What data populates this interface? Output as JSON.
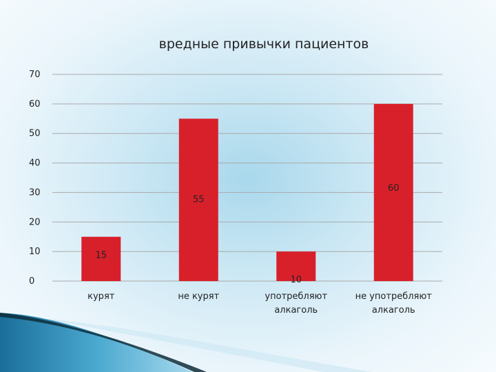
{
  "chart_data": {
    "type": "bar",
    "title": "вредные привычки пациентов",
    "categories": [
      [
        "курят"
      ],
      [
        "не курят"
      ],
      [
        "употребляют",
        "алкаголь"
      ],
      [
        "не употребляют",
        "алкаголь"
      ]
    ],
    "values": [
      15,
      55,
      10,
      60
    ],
    "data_labels": [
      "15",
      "55",
      "10",
      "60"
    ],
    "yticks": [
      "0",
      "10",
      "20",
      "30",
      "40",
      "50",
      "60",
      "70"
    ],
    "ylim": [
      0,
      70
    ],
    "xlabel": "",
    "ylabel": "",
    "grid": true,
    "legend": "none",
    "colors": {
      "bar": "#d8202a",
      "grid": "#a9a9a9"
    }
  }
}
